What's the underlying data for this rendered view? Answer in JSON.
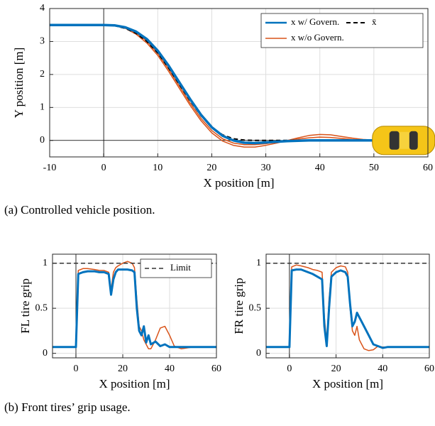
{
  "chart_data": [
    {
      "type": "line",
      "xlabel": "X position [m]",
      "ylabel": "Y position [m]",
      "xlim": [
        -10,
        60
      ],
      "ylim": [
        -0.5,
        4
      ],
      "xticks": [
        -10,
        0,
        10,
        20,
        30,
        40,
        50,
        60
      ],
      "yticks": [
        0,
        1,
        2,
        3,
        4
      ],
      "grid": true,
      "legend": "upper right",
      "x": [
        -10,
        -5,
        0,
        2,
        4,
        6,
        8,
        10,
        12,
        14,
        16,
        18,
        20,
        22,
        24,
        26,
        28,
        30,
        32,
        34,
        36,
        38,
        40,
        42,
        44,
        46,
        48,
        50,
        52,
        55,
        58,
        60
      ],
      "series": [
        {
          "name": "x w/ Govern.",
          "color": "#0072bd",
          "width": 3.5,
          "values": [
            3.5,
            3.5,
            3.5,
            3.49,
            3.43,
            3.3,
            3.07,
            2.72,
            2.27,
            1.76,
            1.25,
            0.78,
            0.4,
            0.14,
            0,
            -0.07,
            -0.08,
            -0.06,
            -0.04,
            -0.02,
            -0.01,
            0,
            0,
            0,
            0,
            0,
            0,
            0,
            0,
            0,
            0,
            0
          ]
        },
        {
          "name": "x̄",
          "color": "#000000",
          "width": 2,
          "dash": true,
          "values": [
            3.5,
            3.5,
            3.5,
            3.48,
            3.4,
            3.25,
            3.0,
            2.65,
            2.2,
            1.7,
            1.2,
            0.75,
            0.4,
            0.17,
            0.05,
            0.01,
            0,
            0,
            0,
            0,
            0,
            0,
            0,
            0,
            0,
            0,
            0,
            0,
            0,
            0,
            0,
            0
          ]
        },
        {
          "name": "x w/o Govern.",
          "color": "#d95319",
          "width": 1.5,
          "values": [
            3.5,
            3.5,
            3.5,
            3.48,
            3.4,
            3.22,
            2.95,
            2.58,
            2.1,
            1.58,
            1.06,
            0.6,
            0.23,
            -0.02,
            -0.15,
            -0.2,
            -0.2,
            -0.15,
            -0.08,
            0,
            0.08,
            0.15,
            0.18,
            0.17,
            0.12,
            0.07,
            0.03,
            0.01,
            0,
            0,
            0,
            0
          ]
        },
        {
          "color": "#d95319",
          "width": 1.5,
          "values": [
            3.5,
            3.5,
            3.5,
            3.48,
            3.41,
            3.26,
            3.01,
            2.64,
            2.17,
            1.65,
            1.13,
            0.67,
            0.3,
            0.05,
            -0.08,
            -0.13,
            -0.13,
            -0.1,
            -0.05,
            0,
            0.04,
            0.08,
            0.1,
            0.09,
            0.06,
            0.03,
            0.01,
            0,
            0,
            0,
            0,
            0
          ]
        }
      ]
    },
    {
      "type": "line",
      "xlabel": "X position [m]",
      "ylabel": "FL tire grip",
      "xlim": [
        -10,
        60
      ],
      "ylim": [
        -0.05,
        1.1
      ],
      "xticks": [
        0,
        20,
        40,
        60
      ],
      "yticks": [
        0,
        0.5,
        1
      ],
      "grid": true,
      "legend": "upper right",
      "x": [
        -10,
        -1,
        0,
        1,
        3,
        5,
        8,
        10,
        12,
        14,
        15,
        16,
        17,
        18,
        20,
        22,
        24,
        25,
        26,
        27,
        28,
        29,
        30,
        31,
        32,
        34,
        36,
        38,
        40,
        42,
        45,
        50,
        55,
        60
      ],
      "series": [
        {
          "name": "Limit",
          "color": "#333333",
          "width": 1.5,
          "dash": true,
          "values": [
            1,
            1,
            1,
            1,
            1,
            1,
            1,
            1,
            1,
            1,
            1,
            1,
            1,
            1,
            1,
            1,
            1,
            1,
            1,
            1,
            1,
            1,
            1,
            1,
            1,
            1,
            1,
            1,
            1,
            1,
            1,
            1,
            1,
            1
          ]
        },
        {
          "color": "#0072bd",
          "width": 3,
          "values": [
            0.07,
            0.07,
            0.07,
            0.88,
            0.9,
            0.91,
            0.91,
            0.9,
            0.9,
            0.88,
            0.65,
            0.82,
            0.9,
            0.93,
            0.93,
            0.93,
            0.92,
            0.9,
            0.5,
            0.25,
            0.2,
            0.3,
            0.12,
            0.2,
            0.1,
            0.13,
            0.08,
            0.1,
            0.07,
            0.07,
            0.07,
            0.07,
            0.07,
            0.07
          ]
        },
        {
          "color": "#d95319",
          "width": 1.5,
          "values": [
            0.07,
            0.07,
            0.07,
            0.92,
            0.94,
            0.94,
            0.93,
            0.92,
            0.92,
            0.9,
            0.7,
            0.9,
            0.95,
            0.97,
            1.0,
            1.02,
            1.0,
            0.95,
            0.6,
            0.3,
            0.25,
            0.15,
            0.1,
            0.05,
            0.05,
            0.15,
            0.28,
            0.3,
            0.2,
            0.08,
            0.05,
            0.07,
            0.07,
            0.07
          ]
        }
      ]
    },
    {
      "type": "line",
      "xlabel": "X position [m]",
      "ylabel": "FR tire grip",
      "xlim": [
        -10,
        60
      ],
      "ylim": [
        -0.05,
        1.1
      ],
      "xticks": [
        0,
        20,
        40,
        60
      ],
      "yticks": [
        0,
        0.5,
        1
      ],
      "grid": true,
      "x": [
        -10,
        -1,
        0,
        1,
        3,
        5,
        8,
        10,
        12,
        14,
        15,
        16,
        17,
        18,
        20,
        22,
        24,
        25,
        26,
        27,
        28,
        29,
        30,
        31,
        32,
        34,
        36,
        38,
        40,
        42,
        45,
        50,
        55,
        60
      ],
      "series": [
        {
          "color": "#333333",
          "width": 1.5,
          "dash": true,
          "values": [
            1,
            1,
            1,
            1,
            1,
            1,
            1,
            1,
            1,
            1,
            1,
            1,
            1,
            1,
            1,
            1,
            1,
            1,
            1,
            1,
            1,
            1,
            1,
            1,
            1,
            1,
            1,
            1,
            1,
            1,
            1,
            1,
            1,
            1
          ]
        },
        {
          "color": "#0072bd",
          "width": 3,
          "values": [
            0.07,
            0.07,
            0.07,
            0.92,
            0.93,
            0.93,
            0.9,
            0.88,
            0.85,
            0.82,
            0.3,
            0.08,
            0.5,
            0.85,
            0.9,
            0.92,
            0.9,
            0.85,
            0.55,
            0.3,
            0.35,
            0.45,
            0.4,
            0.35,
            0.3,
            0.2,
            0.1,
            0.08,
            0.06,
            0.07,
            0.07,
            0.07,
            0.07,
            0.07
          ]
        },
        {
          "color": "#d95319",
          "width": 1.5,
          "values": [
            0.07,
            0.07,
            0.07,
            0.96,
            0.98,
            0.97,
            0.95,
            0.93,
            0.92,
            0.9,
            0.4,
            0.12,
            0.6,
            0.9,
            0.95,
            0.97,
            0.96,
            0.9,
            0.5,
            0.25,
            0.2,
            0.3,
            0.15,
            0.1,
            0.05,
            0.03,
            0.04,
            0.08,
            0.07,
            0.07,
            0.07,
            0.07,
            0.07,
            0.07
          ]
        }
      ]
    }
  ],
  "captions": [
    "(a) Controlled vehicle position.",
    "(b) Front tires’ grip usage."
  ]
}
